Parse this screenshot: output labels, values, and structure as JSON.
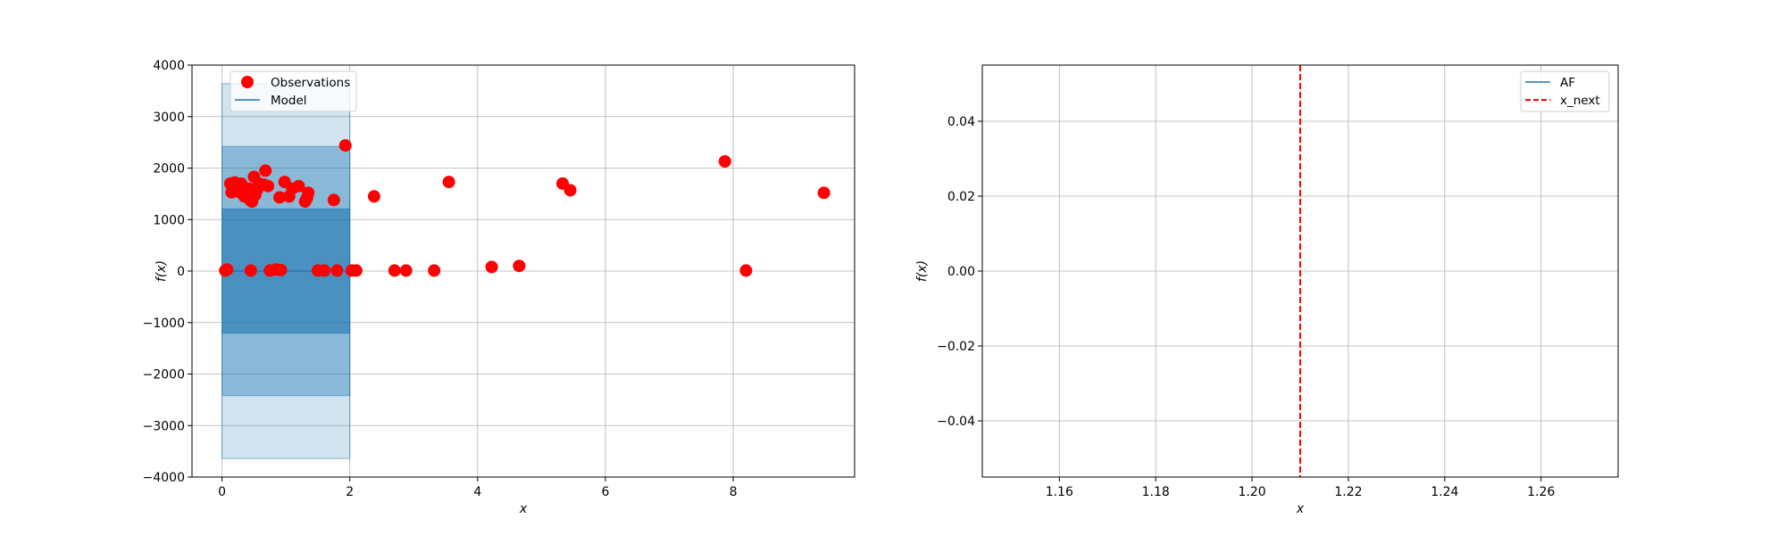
{
  "chart_data": [
    {
      "type": "scatter",
      "xlabel": "x",
      "ylabel": "f(x)",
      "xlim": [
        -0.47,
        9.9
      ],
      "ylim": [
        -4000,
        4000
      ],
      "xticks": [
        0,
        2,
        4,
        6,
        8
      ],
      "xtick_labels": [
        "0",
        "2",
        "4",
        "6",
        "8"
      ],
      "yticks": [
        -4000,
        -3000,
        -2000,
        -1000,
        0,
        1000,
        2000,
        3000,
        4000
      ],
      "ytick_labels": [
        "−4000",
        "−3000",
        "−2000",
        "−1000",
        "0",
        "1000",
        "2000",
        "3000",
        "4000"
      ],
      "grid": true,
      "legend_position": "top-left",
      "legend": [
        "Observations",
        "Model"
      ],
      "colors": {
        "observations": "#ff0000",
        "model": "#1f77b4",
        "band": "#1f77b4"
      },
      "model": {
        "x_range": [
          0,
          2
        ],
        "mean": 0
      },
      "confidence_bands": [
        {
          "lower": -3640,
          "upper": 3640,
          "opacity": 0.2
        },
        {
          "lower": -2420,
          "upper": 2420,
          "opacity": 0.4
        },
        {
          "lower": -1210,
          "upper": 1210,
          "opacity": 0.6
        }
      ],
      "observations": [
        [
          0.05,
          10
        ],
        [
          0.08,
          30
        ],
        [
          0.13,
          1700
        ],
        [
          0.15,
          1530
        ],
        [
          0.2,
          1720
        ],
        [
          0.25,
          1650
        ],
        [
          0.28,
          1530
        ],
        [
          0.3,
          1700
        ],
        [
          0.35,
          1450
        ],
        [
          0.38,
          1530
        ],
        [
          0.42,
          1600
        ],
        [
          0.44,
          1380
        ],
        [
          0.45,
          10
        ],
        [
          0.47,
          1350
        ],
        [
          0.5,
          1830
        ],
        [
          0.52,
          1480
        ],
        [
          0.55,
          1580
        ],
        [
          0.58,
          1700
        ],
        [
          0.65,
          1680
        ],
        [
          0.68,
          1950
        ],
        [
          0.72,
          1650
        ],
        [
          0.75,
          10
        ],
        [
          0.85,
          30
        ],
        [
          0.9,
          1430
        ],
        [
          0.92,
          20
        ],
        [
          0.98,
          1730
        ],
        [
          1.05,
          1450
        ],
        [
          1.1,
          1600
        ],
        [
          1.2,
          1650
        ],
        [
          1.3,
          1350
        ],
        [
          1.33,
          1420
        ],
        [
          1.35,
          1520
        ],
        [
          1.5,
          10
        ],
        [
          1.6,
          10
        ],
        [
          1.75,
          1380
        ],
        [
          1.8,
          10
        ],
        [
          1.93,
          2440
        ],
        [
          2.03,
          10
        ],
        [
          2.1,
          10
        ],
        [
          2.38,
          1450
        ],
        [
          2.7,
          10
        ],
        [
          2.88,
          10
        ],
        [
          3.32,
          10
        ],
        [
          3.55,
          1730
        ],
        [
          4.22,
          80
        ],
        [
          4.65,
          100
        ],
        [
          5.33,
          1700
        ],
        [
          5.45,
          1570
        ],
        [
          7.87,
          2130
        ],
        [
          8.2,
          10
        ],
        [
          9.42,
          1520
        ]
      ]
    },
    {
      "type": "line",
      "xlabel": "x",
      "ylabel": "f(x)",
      "xlim": [
        1.144,
        1.276
      ],
      "ylim": [
        -0.055,
        0.055
      ],
      "xticks": [
        1.16,
        1.18,
        1.2,
        1.22,
        1.24,
        1.26
      ],
      "xtick_labels": [
        "1.16",
        "1.18",
        "1.20",
        "1.22",
        "1.24",
        "1.26"
      ],
      "yticks": [
        -0.04,
        -0.02,
        0.0,
        0.02,
        0.04
      ],
      "ytick_labels": [
        "−0.04",
        "−0.02",
        "0.00",
        "0.02",
        "0.04"
      ],
      "grid": true,
      "legend_position": "top-right",
      "legend": [
        "AF",
        "x_next"
      ],
      "colors": {
        "af": "#1f77b4",
        "x_next": "#ff0000"
      },
      "x_next": 1.21
    }
  ]
}
